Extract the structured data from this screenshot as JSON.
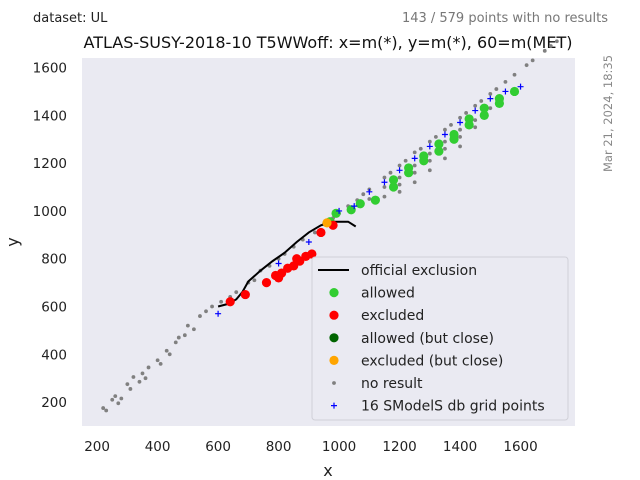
{
  "header": {
    "dataset": "dataset: UL",
    "points_status": "143 / 579 points with no results",
    "timestamp": "Mar 21, 2024, 18:35"
  },
  "chart_data": {
    "type": "scatter",
    "title": "ATLAS-SUSY-2018-10 T5WWoff: x=m(*), y=m(*), 60=m(MET)",
    "xlabel": "x",
    "ylabel": "y",
    "xlim": [
      150,
      1780
    ],
    "ylim": [
      100,
      1640
    ],
    "xticks": [
      200,
      400,
      600,
      800,
      1000,
      1200,
      1400,
      1600
    ],
    "yticks": [
      200,
      400,
      600,
      800,
      1000,
      1200,
      1400,
      1600
    ],
    "grid": false,
    "legend_position": "lower-right",
    "colors": {
      "allowed": "#32cd32",
      "excluded": "#ff0000",
      "allowed_close": "#006400",
      "excluded_close": "#ffa500",
      "no_result": "#808080",
      "grid_points": "#0000ff",
      "exclusion_line": "#000000",
      "plot_background": "#eaeaf2"
    },
    "legend": [
      {
        "key": "official",
        "label": "official exclusion",
        "marker": "line"
      },
      {
        "key": "allowed",
        "label": "allowed",
        "marker": "dot"
      },
      {
        "key": "excluded",
        "label": "excluded",
        "marker": "dot"
      },
      {
        "key": "allowed_close",
        "label": "allowed (but close)",
        "marker": "dot"
      },
      {
        "key": "excluded_close",
        "label": "excluded (but close)",
        "marker": "dot"
      },
      {
        "key": "no_result",
        "label": "no result",
        "marker": "small-dot"
      },
      {
        "key": "grid_points",
        "label": "16 SModelS db grid points",
        "marker": "plus"
      }
    ],
    "series": [
      {
        "key": "official",
        "name": "official exclusion",
        "x": [
          600,
          630,
          660,
          680,
          700,
          740,
          780,
          820,
          860,
          900,
          940,
          980,
          1000,
          1030,
          1055
        ],
        "y": [
          600,
          610,
          630,
          660,
          705,
          750,
          790,
          825,
          870,
          910,
          940,
          955,
          955,
          955,
          935
        ]
      },
      {
        "key": "allowed",
        "name": "allowed",
        "x": [
          990,
          1070,
          1120,
          1180,
          1230,
          1280,
          1330,
          1380,
          1430,
          1480,
          1530,
          1580,
          1180,
          1230,
          1280,
          1330,
          1380,
          1430,
          1480,
          1530,
          970,
          1040
        ],
        "y": [
          990,
          1030,
          1045,
          1100,
          1160,
          1210,
          1250,
          1300,
          1360,
          1400,
          1450,
          1500,
          1130,
          1180,
          1230,
          1280,
          1320,
          1385,
          1430,
          1470,
          955,
          1005
        ]
      },
      {
        "key": "excluded",
        "name": "excluded",
        "x": [
          640,
          690,
          760,
          790,
          810,
          830,
          850,
          870,
          890,
          910,
          940,
          980,
          800,
          860
        ],
        "y": [
          620,
          650,
          700,
          730,
          740,
          760,
          770,
          790,
          810,
          820,
          910,
          940,
          720,
          800
        ]
      },
      {
        "key": "allowed_close",
        "name": "allowed (but close)",
        "x": [],
        "y": []
      },
      {
        "key": "excluded_close",
        "name": "excluded (but close)",
        "x": [
          960
        ],
        "y": [
          950
        ]
      },
      {
        "key": "no_result",
        "name": "no result",
        "x": [
          220,
          230,
          250,
          260,
          270,
          280,
          300,
          310,
          320,
          340,
          350,
          360,
          370,
          400,
          410,
          430,
          440,
          460,
          470,
          490,
          500,
          520,
          540,
          560,
          580,
          610,
          640,
          660,
          700,
          720,
          740,
          770,
          800,
          820,
          850,
          880,
          920,
          950,
          980,
          1000,
          1030,
          1060,
          1080,
          1100,
          1150,
          1170,
          1200,
          1220,
          1250,
          1270,
          1300,
          1320,
          1350,
          1370,
          1400,
          1420,
          1450,
          1470,
          1500,
          1520,
          1550,
          1580,
          1620,
          1640,
          1680,
          1700,
          1720,
          1100,
          1150,
          1200,
          1250,
          1300,
          1350,
          1400,
          1450,
          1500,
          1150,
          1200,
          1250,
          1300,
          1350,
          1400,
          1450,
          1200,
          1250,
          1300,
          1350,
          1400
        ],
        "y": [
          175,
          165,
          210,
          225,
          195,
          215,
          275,
          255,
          305,
          285,
          320,
          300,
          345,
          375,
          360,
          415,
          400,
          450,
          470,
          480,
          520,
          505,
          560,
          580,
          600,
          620,
          640,
          660,
          700,
          710,
          750,
          770,
          800,
          820,
          850,
          880,
          910,
          945,
          970,
          990,
          1020,
          1045,
          1070,
          1090,
          1140,
          1160,
          1190,
          1210,
          1245,
          1260,
          1290,
          1310,
          1340,
          1360,
          1390,
          1410,
          1440,
          1460,
          1490,
          1510,
          1540,
          1570,
          1610,
          1630,
          1670,
          1690,
          1710,
          1050,
          1100,
          1140,
          1190,
          1240,
          1290,
          1340,
          1380,
          1430,
          1060,
          1110,
          1160,
          1210,
          1260,
          1310,
          1350,
          1080,
          1120,
          1170,
          1220,
          1270
        ]
      },
      {
        "key": "grid_points",
        "name": "16 SModelS db grid points",
        "x": [
          600,
          800,
          900,
          1000,
          1100,
          1200,
          1300,
          1400,
          1500,
          1600,
          1050,
          1150,
          1250,
          1350,
          1450,
          1550
        ],
        "y": [
          570,
          780,
          870,
          1000,
          1080,
          1170,
          1270,
          1370,
          1470,
          1520,
          1020,
          1120,
          1220,
          1320,
          1420,
          1500
        ]
      }
    ]
  }
}
